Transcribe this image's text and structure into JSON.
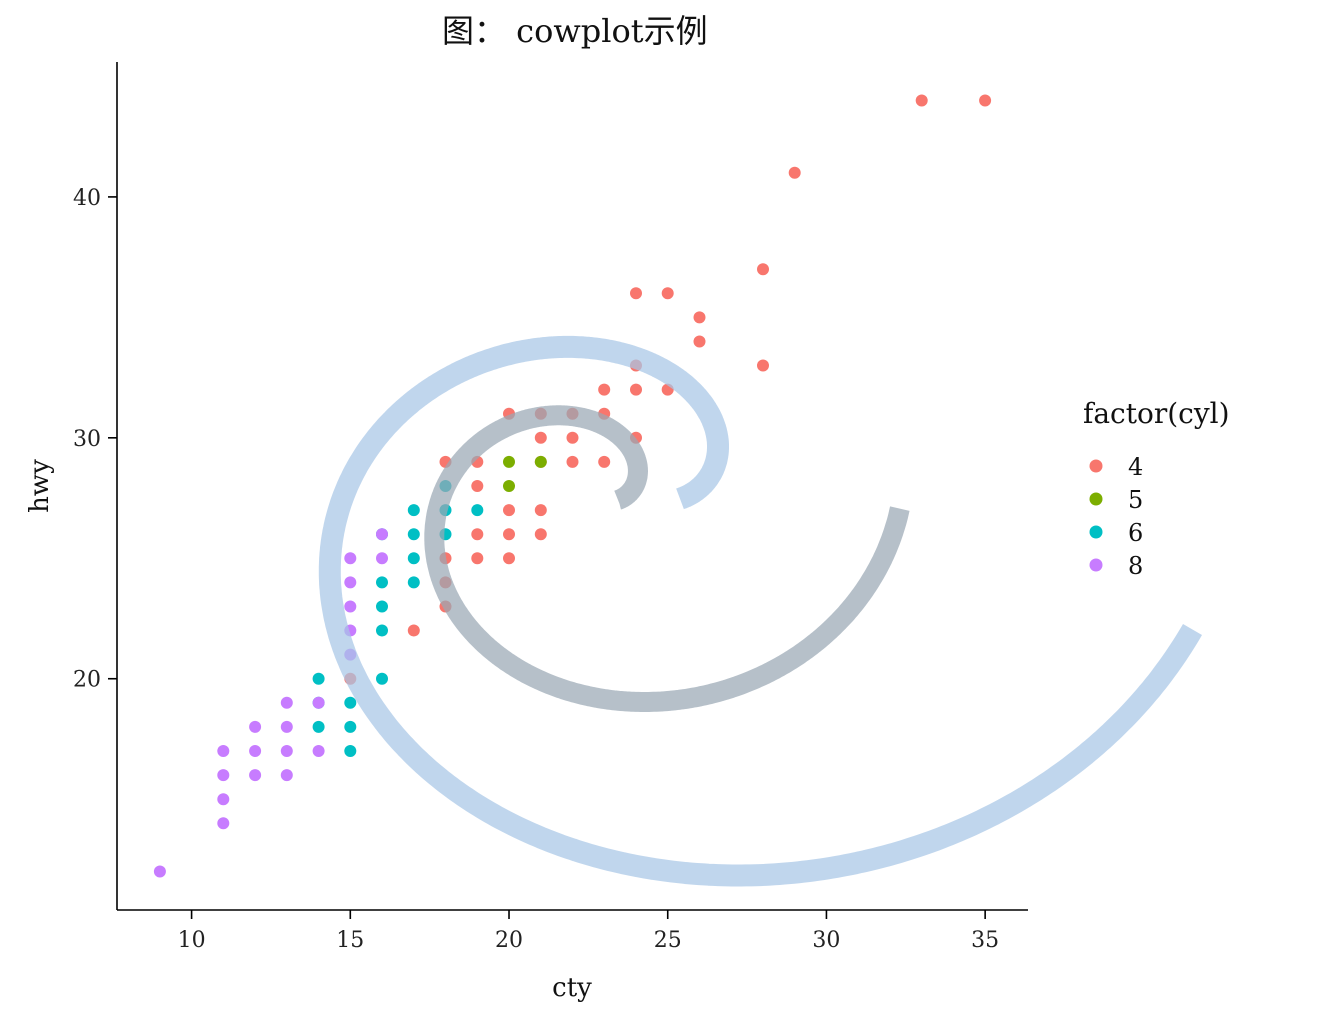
{
  "chart_data": {
    "type": "scatter",
    "title": "图： cowplot示例",
    "xlabel": "cty",
    "ylabel": "hwy",
    "xlim": [
      7.65,
      36.35
    ],
    "ylim": [
      10.4,
      45.6
    ],
    "xticks": [
      10,
      15,
      20,
      25,
      30,
      35
    ],
    "yticks": [
      20,
      30,
      40
    ],
    "grid": false,
    "legend": {
      "title": "factor(cyl)",
      "placement": "right",
      "entries": [
        {
          "label": "4",
          "color": "#F8766D"
        },
        {
          "label": "5",
          "color": "#7CAE00"
        },
        {
          "label": "6",
          "color": "#00BFC4"
        },
        {
          "label": "8",
          "color": "#C77CFF"
        }
      ]
    },
    "series": [
      {
        "key": "4",
        "color": "#F8766D",
        "points": [
          [
            35,
            44
          ],
          [
            33,
            44
          ],
          [
            29,
            41
          ],
          [
            28,
            37
          ],
          [
            28,
            33
          ],
          [
            26,
            35
          ],
          [
            26,
            34
          ],
          [
            25,
            36
          ],
          [
            25,
            32
          ],
          [
            24,
            36
          ],
          [
            24,
            33
          ],
          [
            24,
            32
          ],
          [
            24,
            30
          ],
          [
            23,
            32
          ],
          [
            23,
            31
          ],
          [
            23,
            29
          ],
          [
            22,
            31
          ],
          [
            22,
            30
          ],
          [
            22,
            29
          ],
          [
            21,
            31
          ],
          [
            21,
            30
          ],
          [
            21,
            29
          ],
          [
            21,
            27
          ],
          [
            21,
            26
          ],
          [
            20,
            31
          ],
          [
            20,
            27
          ],
          [
            20,
            26
          ],
          [
            20,
            25
          ],
          [
            19,
            29
          ],
          [
            19,
            28
          ],
          [
            19,
            26
          ],
          [
            19,
            25
          ],
          [
            18,
            29
          ],
          [
            18,
            25
          ],
          [
            18,
            24
          ],
          [
            18,
            23
          ],
          [
            17,
            22
          ],
          [
            15,
            20
          ]
        ]
      },
      {
        "key": "5",
        "color": "#7CAE00",
        "points": [
          [
            20,
            29
          ],
          [
            20,
            28
          ],
          [
            21,
            29
          ]
        ]
      },
      {
        "key": "6",
        "color": "#00BFC4",
        "points": [
          [
            19,
            27
          ],
          [
            18,
            28
          ],
          [
            18,
            27
          ],
          [
            18,
            26
          ],
          [
            17,
            27
          ],
          [
            17,
            26
          ],
          [
            17,
            25
          ],
          [
            17,
            24
          ],
          [
            16,
            26
          ],
          [
            16,
            24
          ],
          [
            16,
            23
          ],
          [
            16,
            22
          ],
          [
            16,
            20
          ],
          [
            15,
            19
          ],
          [
            15,
            18
          ],
          [
            15,
            17
          ],
          [
            14,
            20
          ],
          [
            14,
            19
          ],
          [
            14,
            18
          ]
        ]
      },
      {
        "key": "8",
        "color": "#C77CFF",
        "points": [
          [
            16,
            26
          ],
          [
            16,
            25
          ],
          [
            15,
            25
          ],
          [
            15,
            24
          ],
          [
            15,
            23
          ],
          [
            15,
            22
          ],
          [
            15,
            21
          ],
          [
            14,
            19
          ],
          [
            14,
            17
          ],
          [
            13,
            19
          ],
          [
            13,
            18
          ],
          [
            13,
            17
          ],
          [
            13,
            16
          ],
          [
            12,
            18
          ],
          [
            12,
            17
          ],
          [
            12,
            16
          ],
          [
            11,
            17
          ],
          [
            11,
            16
          ],
          [
            11,
            15
          ],
          [
            11,
            14
          ],
          [
            9,
            12
          ]
        ]
      }
    ]
  }
}
